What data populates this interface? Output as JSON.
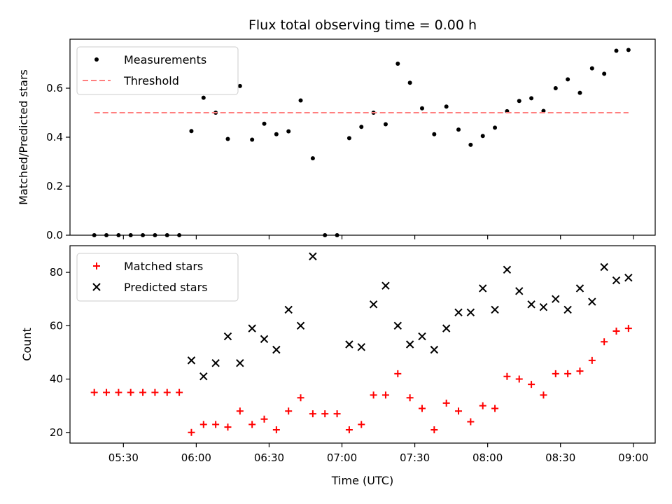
{
  "chart_data": [
    {
      "type": "scatter",
      "title": "Flux total observing time = 0.00 h",
      "xlabel": "",
      "ylabel": "Matched/Predicted stars",
      "ylim": [
        0,
        0.8
      ],
      "yticks": [
        0.0,
        0.2,
        0.4,
        0.6
      ],
      "ytick_labels": [
        "0.0",
        "0.2",
        "0.4",
        "0.6"
      ],
      "xlim": [
        "05:08",
        "09:09"
      ],
      "x": [
        "05:18",
        "05:23",
        "05:28",
        "05:33",
        "05:38",
        "05:43",
        "05:48",
        "05:53",
        "05:58",
        "06:03",
        "06:08",
        "06:13",
        "06:18",
        "06:23",
        "06:28",
        "06:33",
        "06:38",
        "06:43",
        "06:48",
        "06:53",
        "06:58",
        "07:03",
        "07:08",
        "07:13",
        "07:18",
        "07:23",
        "07:28",
        "07:33",
        "07:38",
        "07:43",
        "07:48",
        "07:53",
        "07:58",
        "08:03",
        "08:08",
        "08:13",
        "08:18",
        "08:23",
        "08:28",
        "08:33",
        "08:38",
        "08:43",
        "08:48",
        "08:53",
        "08:58"
      ],
      "series": [
        {
          "name": "Measurements",
          "marker": "dot",
          "color": "#000000",
          "values": [
            0,
            0,
            0,
            0,
            0,
            0,
            0,
            0,
            0.425,
            0.561,
            0.5,
            0.393,
            0.609,
            0.39,
            0.455,
            0.412,
            0.424,
            0.55,
            0.314,
            0,
            0,
            0.396,
            0.442,
            0.5,
            0.453,
            0.7,
            0.622,
            0.518,
            0.412,
            0.525,
            0.431,
            0.369,
            0.405,
            0.439,
            0.506,
            0.548,
            0.559,
            0.507,
            0.6,
            0.636,
            0.581,
            0.681,
            0.659,
            0.753,
            0.756
          ]
        },
        {
          "name": "Threshold",
          "marker": "dashed-line",
          "color": "#ff7f7f",
          "values": [
            0.5,
            0.5
          ],
          "x": [
            "05:18",
            "08:58"
          ]
        }
      ],
      "legend": "top-left",
      "grid": false
    },
    {
      "type": "scatter",
      "title": "",
      "xlabel": "Time (UTC)",
      "ylabel": "Count",
      "ylim": [
        16,
        90
      ],
      "yticks": [
        20,
        40,
        60,
        80
      ],
      "ytick_labels": [
        "20",
        "40",
        "60",
        "80"
      ],
      "xlim": [
        "05:08",
        "09:09"
      ],
      "xticks": [
        "05:30",
        "06:00",
        "06:30",
        "07:00",
        "07:30",
        "08:00",
        "08:30",
        "09:00"
      ],
      "xtick_labels": [
        "05:30",
        "06:00",
        "06:30",
        "07:00",
        "07:30",
        "08:00",
        "08:30",
        "09:00"
      ],
      "series": [
        {
          "name": "Matched stars",
          "marker": "plus",
          "color": "#ff0000",
          "x": [
            "05:18",
            "05:23",
            "05:28",
            "05:33",
            "05:38",
            "05:43",
            "05:48",
            "05:53",
            "05:58",
            "06:03",
            "06:08",
            "06:13",
            "06:18",
            "06:23",
            "06:28",
            "06:33",
            "06:38",
            "06:43",
            "06:48",
            "06:53",
            "06:58",
            "07:03",
            "07:08",
            "07:13",
            "07:18",
            "07:23",
            "07:28",
            "07:33",
            "07:38",
            "07:43",
            "07:48",
            "07:53",
            "07:58",
            "08:03",
            "08:08",
            "08:13",
            "08:18",
            "08:23",
            "08:28",
            "08:33",
            "08:38",
            "08:43",
            "08:48",
            "08:53",
            "08:58"
          ],
          "values": [
            35,
            35,
            35,
            35,
            35,
            35,
            35,
            35,
            20,
            23,
            23,
            22,
            28,
            23,
            25,
            21,
            28,
            33,
            27,
            27,
            27,
            21,
            23,
            34,
            34,
            42,
            33,
            29,
            21,
            31,
            28,
            24,
            30,
            29,
            41,
            40,
            38,
            34,
            42,
            42,
            43,
            47,
            54,
            58,
            59
          ]
        },
        {
          "name": "Predicted stars",
          "marker": "x",
          "color": "#000000",
          "x": [
            "05:58",
            "06:03",
            "06:08",
            "06:13",
            "06:18",
            "06:23",
            "06:28",
            "06:33",
            "06:38",
            "06:43",
            "06:48",
            "07:03",
            "07:08",
            "07:13",
            "07:18",
            "07:23",
            "07:28",
            "07:33",
            "07:38",
            "07:43",
            "07:48",
            "07:53",
            "07:58",
            "08:03",
            "08:08",
            "08:13",
            "08:18",
            "08:23",
            "08:28",
            "08:33",
            "08:38",
            "08:43",
            "08:48",
            "08:53",
            "08:58"
          ],
          "values": [
            47,
            41,
            46,
            56,
            46,
            59,
            55,
            51,
            66,
            60,
            86,
            53,
            52,
            68,
            75,
            60,
            53,
            56,
            51,
            59,
            65,
            65,
            74,
            66,
            81,
            73,
            68,
            67,
            70,
            66,
            74,
            69,
            82,
            77,
            78
          ]
        }
      ],
      "legend": "top-left",
      "grid": false
    }
  ]
}
